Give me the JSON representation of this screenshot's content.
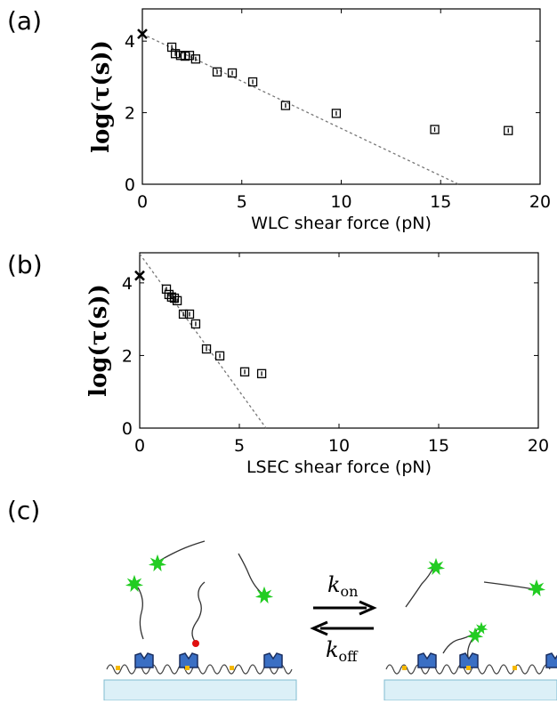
{
  "chart_data": [
    {
      "type": "scatter",
      "panel": "(a)",
      "x_label": "WLC shear force (pN)",
      "y_label": "log(τ(s))",
      "xlim": [
        0,
        20
      ],
      "xticks": [
        0,
        5,
        10,
        15,
        20
      ],
      "ylim": [
        0,
        4.9
      ],
      "yticks": [
        0,
        2,
        4
      ],
      "points": {
        "x": [
          1.48,
          1.66,
          1.92,
          2.15,
          2.37,
          2.68,
          3.76,
          4.52,
          5.55,
          7.2,
          9.75,
          14.7,
          18.4
        ],
        "y": [
          3.83,
          3.65,
          3.6,
          3.58,
          3.6,
          3.5,
          3.14,
          3.11,
          2.86,
          2.2,
          1.98,
          1.53,
          1.5
        ]
      },
      "zero_force": {
        "x": 0,
        "y": 4.2
      },
      "fit": {
        "x": [
          0,
          15.9
        ],
        "y": [
          4.2,
          0
        ]
      },
      "color": "#000000",
      "fit_color": "#777777"
    },
    {
      "type": "scatter",
      "panel": "(b)",
      "x_label": "LSEC shear force (pN)",
      "y_label": "log(τ(s))",
      "xlim": [
        0,
        20
      ],
      "xticks": [
        0,
        5,
        10,
        15,
        20
      ],
      "ylim": [
        0,
        4.83
      ],
      "yticks": [
        0,
        2,
        4
      ],
      "points": {
        "x": [
          1.34,
          1.47,
          1.6,
          1.74,
          1.88,
          2.19,
          2.5,
          2.81,
          3.35,
          4.02,
          5.27,
          6.12
        ],
        "y": [
          3.83,
          3.68,
          3.61,
          3.58,
          3.51,
          3.14,
          3.14,
          2.87,
          2.18,
          1.99,
          1.55,
          1.5
        ]
      },
      "zero_force": {
        "x": 0,
        "y": 4.2
      },
      "fit": {
        "x": [
          0,
          6.34
        ],
        "y": [
          4.8,
          0
        ]
      },
      "color": "#000000",
      "fit_color": "#777777"
    }
  ],
  "diagram": {
    "panel": "(c)",
    "forward": {
      "symbol": "k",
      "sub": "on"
    },
    "backward": {
      "symbol": "k",
      "sub": "off"
    }
  }
}
